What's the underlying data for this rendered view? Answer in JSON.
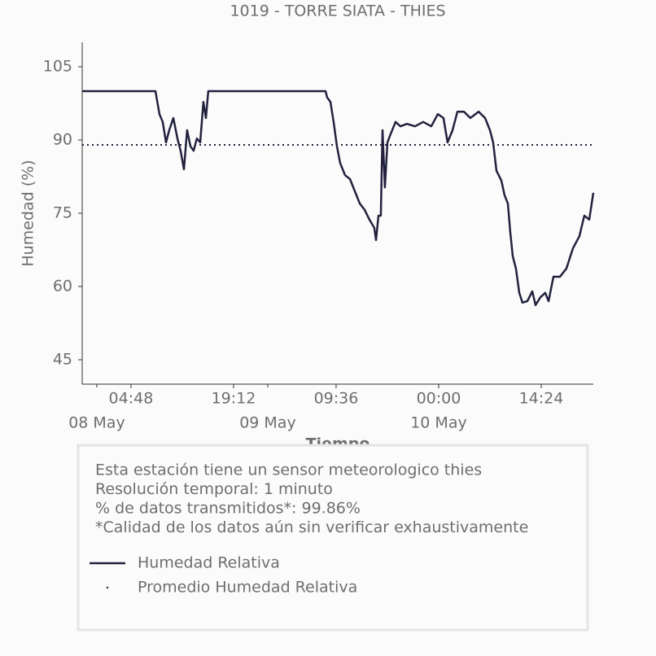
{
  "chart_data": {
    "type": "line",
    "title": "1019 - TORRE SIATA - THIES",
    "ylabel": "Humedad (%)",
    "xlabel": "Tiempo",
    "ylim": [
      40,
      110
    ],
    "yticks": [
      45,
      60,
      75,
      90,
      105
    ],
    "xlim": [
      "07 May 21:57",
      "10 May 21:43"
    ],
    "xticks": [
      {
        "value": "08 May 04:48",
        "label": "04:48"
      },
      {
        "value": "08 May 19:12",
        "label": "19:12"
      },
      {
        "value": "09 May 09:36",
        "label": "09:36"
      },
      {
        "value": "10 May 00:00",
        "label": "00:00"
      },
      {
        "value": "10 May 14:24",
        "label": "14:24"
      }
    ],
    "date_ticks": [
      {
        "value": "08 May 00:00",
        "label": "08 May"
      },
      {
        "value": "09 May 00:00",
        "label": "09 May"
      },
      {
        "value": "10 May 00:00",
        "label": "10 May"
      }
    ],
    "series": [
      {
        "name": "Humedad Relativa",
        "color": "#22223f",
        "style": "solid",
        "x": [
          "07 May 21:57",
          "08 May 08:14",
          "08 May 08:48",
          "08 May 09:15",
          "08 May 09:43",
          "08 May 10:10",
          "08 May 10:45",
          "08 May 11:19",
          "08 May 11:46",
          "08 May 12:14",
          "08 May 12:41",
          "08 May 13:09",
          "08 May 13:36",
          "08 May 14:03",
          "08 May 14:31",
          "08 May 14:58",
          "08 May 15:19",
          "08 May 15:39",
          "09 May 08:07",
          "09 May 08:21",
          "09 May 08:48",
          "09 May 09:15",
          "09 May 09:43",
          "09 May 10:10",
          "09 May 10:51",
          "09 May 11:33",
          "09 May 12:14",
          "09 May 12:55",
          "09 May 13:36",
          "09 May 14:17",
          "09 May 14:58",
          "09 May 15:12",
          "09 May 15:33",
          "09 May 15:53",
          "09 May 16:07",
          "09 May 16:27",
          "09 May 16:48",
          "09 May 17:15",
          "09 May 17:57",
          "09 May 18:38",
          "09 May 19:33",
          "09 May 20:41",
          "09 May 21:50",
          "09 May 22:58",
          "09 May 23:53",
          "10 May 00:41",
          "10 May 01:15",
          "10 May 01:57",
          "10 May 02:38",
          "10 May 03:33",
          "10 May 04:27",
          "10 May 05:36",
          "10 May 06:31",
          "10 May 07:12",
          "10 May 07:39",
          "10 May 08:07",
          "10 May 08:48",
          "10 May 09:15",
          "10 May 09:43",
          "10 May 10:03",
          "10 May 10:24",
          "10 May 10:51",
          "10 May 11:19",
          "10 May 11:46",
          "10 May 12:27",
          "10 May 13:09",
          "10 May 13:36",
          "10 May 14:17",
          "10 May 14:58",
          "10 May 15:26",
          "10 May 16:07",
          "10 May 17:02",
          "10 May 17:57",
          "10 May 18:51",
          "10 May 19:46",
          "10 May 20:27",
          "10 May 21:09",
          "10 May 21:43"
        ],
        "values": [
          100,
          100,
          95.3,
          93.7,
          89.5,
          92,
          94.5,
          90.3,
          87.8,
          84,
          92,
          88.7,
          87.8,
          90.3,
          89.5,
          97.8,
          94.5,
          100,
          100,
          98.7,
          97.8,
          93.7,
          88.7,
          85.3,
          82.8,
          82,
          79.5,
          77,
          75.7,
          73.7,
          72,
          69.5,
          74.5,
          74.5,
          92,
          80.3,
          89.5,
          91.2,
          93.7,
          92.8,
          93.3,
          92.8,
          93.7,
          92.8,
          95.3,
          94.5,
          89.5,
          92,
          95.8,
          95.8,
          94.5,
          95.8,
          94.5,
          92,
          89.5,
          83.7,
          81.7,
          78.7,
          77,
          71.2,
          66.2,
          63.7,
          58.7,
          56.7,
          57,
          59,
          56.2,
          57.8,
          58.7,
          57,
          62,
          62,
          63.7,
          67.8,
          70.3,
          74.5,
          73.7,
          79.2
        ]
      },
      {
        "name": "Promedio Humedad Relativa",
        "color": "#22223f",
        "style": "dotted",
        "x": [
          "07 May 21:57",
          "10 May 21:43"
        ],
        "values": [
          89,
          89
        ]
      }
    ]
  },
  "info": [
    "Esta estación tiene un sensor meteorologico thies",
    "Resolución temporal: 1 minuto",
    "% de datos transmitidos*: 99.86%",
    "*Calidad de los datos aún sin verificar exhaustivamente"
  ]
}
